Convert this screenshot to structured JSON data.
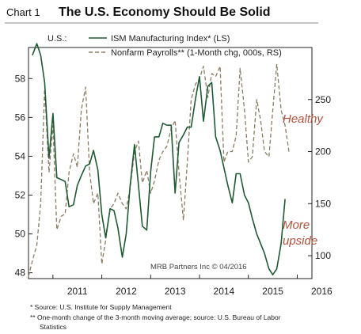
{
  "header": {
    "chart_number": "Chart 1",
    "title": "The U.S. Economy Should Be Solid"
  },
  "legend": {
    "prefix": "U.S.:",
    "ism_label": "ISM Manufacturing Index* (LS)",
    "payrolls_label": "Nonfarm Payrolls** (1-Month chg, 000s, RS)"
  },
  "annotations": {
    "healthy": "Healthy",
    "more": "More",
    "upside": "upside",
    "credit": "MRB Partners Inc © 04/2016"
  },
  "footnotes": {
    "note1": "*  Source: U.S. Institute for Supply Management",
    "note2a": "** One-month change of the 3-month moving average; source: U.S. Bureau of Labor",
    "note2b": "Statistics"
  },
  "colors": {
    "ism": "#1e5a32",
    "payrolls": "#8c7b62",
    "annotation": "#b5503a",
    "title_rule": "#8a8a8a"
  },
  "chart_data": {
    "type": "line",
    "x_ticks": [
      "2011",
      "2012",
      "2013",
      "2014",
      "2015",
      "2016"
    ],
    "x_range": [
      2010.5,
      2016.3
    ],
    "left_axis": {
      "ticks": [
        48,
        50,
        52,
        54,
        56,
        58
      ],
      "range": [
        47.7,
        59.6
      ]
    },
    "right_axis": {
      "ticks": [
        100,
        150,
        200,
        250
      ],
      "range": [
        78,
        300
      ]
    },
    "series": [
      {
        "name": "ISM Manufacturing Index* (LS)",
        "axis": "left",
        "style": "solid",
        "points": [
          [
            2010.58,
            59.2
          ],
          [
            2010.67,
            59.8
          ],
          [
            2010.75,
            59.2
          ],
          [
            2010.83,
            57.8
          ],
          [
            2010.92,
            53.9
          ],
          [
            2011.0,
            56.2
          ],
          [
            2011.08,
            52.9
          ],
          [
            2011.17,
            52.8
          ],
          [
            2011.25,
            52.7
          ],
          [
            2011.33,
            51.4
          ],
          [
            2011.42,
            51.5
          ],
          [
            2011.5,
            52.5
          ],
          [
            2011.58,
            53.0
          ],
          [
            2011.67,
            53.5
          ],
          [
            2011.75,
            53.6
          ],
          [
            2011.83,
            54.3
          ],
          [
            2011.92,
            53.3
          ],
          [
            2012.0,
            51.0
          ],
          [
            2012.08,
            49.8
          ],
          [
            2012.17,
            51.3
          ],
          [
            2012.25,
            51.2
          ],
          [
            2012.33,
            50.3
          ],
          [
            2012.42,
            48.8
          ],
          [
            2012.5,
            50.0
          ],
          [
            2012.58,
            52.5
          ],
          [
            2012.67,
            54.6
          ],
          [
            2012.75,
            52.5
          ],
          [
            2012.83,
            50.4
          ],
          [
            2012.92,
            50.2
          ],
          [
            2013.0,
            53.2
          ],
          [
            2013.08,
            55.0
          ],
          [
            2013.17,
            55.0
          ],
          [
            2013.25,
            55.7
          ],
          [
            2013.33,
            55.6
          ],
          [
            2013.42,
            55.6
          ],
          [
            2013.5,
            52.1
          ],
          [
            2013.58,
            54.7
          ],
          [
            2013.67,
            55.1
          ],
          [
            2013.75,
            55.5
          ],
          [
            2013.83,
            55.5
          ],
          [
            2013.92,
            57.0
          ],
          [
            2014.0,
            58.1
          ],
          [
            2014.08,
            55.8
          ],
          [
            2014.17,
            57.6
          ],
          [
            2014.25,
            57.8
          ],
          [
            2014.33,
            55.0
          ],
          [
            2014.42,
            54.3
          ],
          [
            2014.5,
            53.4
          ],
          [
            2014.58,
            52.5
          ],
          [
            2014.67,
            51.6
          ],
          [
            2014.75,
            53.1
          ],
          [
            2014.83,
            53.1
          ],
          [
            2014.92,
            52.0
          ],
          [
            2015.0,
            51.6
          ],
          [
            2015.08,
            50.8
          ],
          [
            2015.17,
            50.0
          ],
          [
            2015.25,
            49.5
          ],
          [
            2015.33,
            49.0
          ],
          [
            2015.42,
            48.2
          ],
          [
            2015.5,
            47.9
          ],
          [
            2015.58,
            48.2
          ],
          [
            2015.67,
            49.5
          ],
          [
            2015.75,
            51.8
          ]
        ]
      },
      {
        "name": "Nonfarm Payrolls** (1-Month chg, 000s, RS)",
        "axis": "right",
        "style": "dashed",
        "points": [
          [
            2010.5,
            80
          ],
          [
            2010.58,
            95
          ],
          [
            2010.67,
            110
          ],
          [
            2010.75,
            150
          ],
          [
            2010.83,
            260
          ],
          [
            2010.92,
            180
          ],
          [
            2011.0,
            225
          ],
          [
            2011.08,
            125
          ],
          [
            2011.17,
            138
          ],
          [
            2011.25,
            140
          ],
          [
            2011.33,
            180
          ],
          [
            2011.42,
            198
          ],
          [
            2011.5,
            185
          ],
          [
            2011.58,
            240
          ],
          [
            2011.67,
            262
          ],
          [
            2011.75,
            180
          ],
          [
            2011.83,
            150
          ],
          [
            2011.92,
            160
          ],
          [
            2012.0,
            92
          ],
          [
            2012.08,
            115
          ],
          [
            2012.17,
            145
          ],
          [
            2012.25,
            150
          ],
          [
            2012.33,
            160
          ],
          [
            2012.42,
            150
          ],
          [
            2012.5,
            145
          ],
          [
            2012.58,
            165
          ],
          [
            2012.67,
            200
          ],
          [
            2012.75,
            210
          ],
          [
            2012.83,
            170
          ],
          [
            2012.92,
            182
          ],
          [
            2013.0,
            160
          ],
          [
            2013.08,
            172
          ],
          [
            2013.17,
            192
          ],
          [
            2013.25,
            200
          ],
          [
            2013.33,
            205
          ],
          [
            2013.42,
            222
          ],
          [
            2013.5,
            230
          ],
          [
            2013.58,
            180
          ],
          [
            2013.67,
            134
          ],
          [
            2013.75,
            190
          ],
          [
            2013.83,
            250
          ],
          [
            2013.92,
            265
          ],
          [
            2014.0,
            270
          ],
          [
            2014.08,
            282
          ],
          [
            2014.17,
            252
          ],
          [
            2014.25,
            275
          ],
          [
            2014.33,
            272
          ],
          [
            2014.42,
            282
          ],
          [
            2014.5,
            190
          ],
          [
            2014.58,
            200
          ],
          [
            2014.67,
            200
          ],
          [
            2014.75,
            215
          ],
          [
            2014.83,
            280
          ],
          [
            2014.92,
            240
          ],
          [
            2015.0,
            190
          ],
          [
            2015.08,
            195
          ],
          [
            2015.17,
            250
          ],
          [
            2015.25,
            230
          ],
          [
            2015.33,
            200
          ],
          [
            2015.42,
            195
          ],
          [
            2015.5,
            240
          ],
          [
            2015.58,
            284
          ],
          [
            2015.67,
            240
          ],
          [
            2015.75,
            225
          ],
          [
            2015.83,
            200
          ]
        ]
      }
    ]
  }
}
